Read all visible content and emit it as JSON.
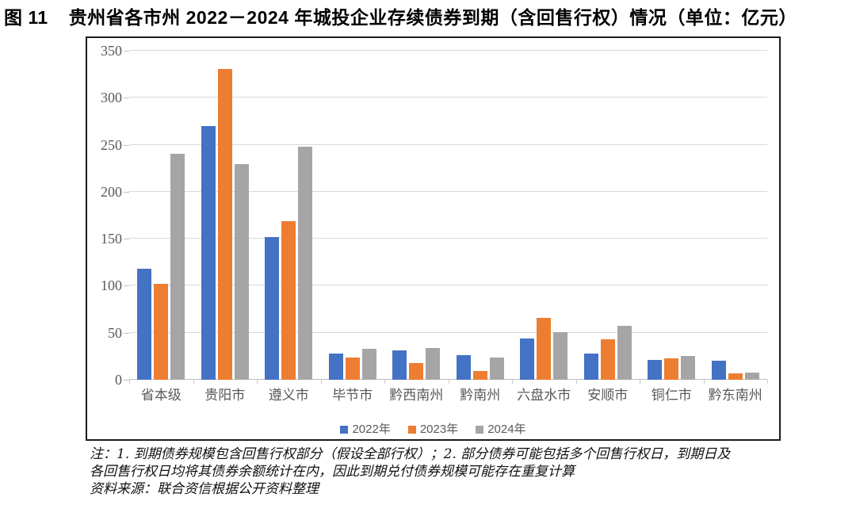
{
  "figure": {
    "title_prefix": "图 11",
    "title_text": "贵州省各市州 2022－2024 年城投企业存续债券到期（含回售行权）情况（单位：亿元）",
    "notes": [
      "注：1. 到期债券规模包含回售行权部分（假设全部行权）；2. 部分债券可能包括多个回售行权日，到期日及",
      "各回售行权日均将其债券余额统计在内，因此到期兑付债券规模可能存在重复计算",
      "资料来源：联合资信根据公开资料整理"
    ]
  },
  "chart_data": {
    "type": "bar",
    "title": "贵州省各市州2022－2024年城投企业存续债券到期（含回售行权）情况",
    "unit": "亿元",
    "categories": [
      "省本级",
      "贵阳市",
      "遵义市",
      "毕节市",
      "黔西南州",
      "黔南州",
      "六盘水市",
      "安顺市",
      "铜仁市",
      "黔东南州"
    ],
    "series": [
      {
        "name": "2022年",
        "color": "#4472C4",
        "values": [
          118,
          270,
          152,
          28,
          31,
          26,
          44,
          28,
          21,
          20
        ]
      },
      {
        "name": "2023年",
        "color": "#ED7D31",
        "values": [
          102,
          331,
          169,
          24,
          18,
          9,
          66,
          43,
          23,
          7
        ]
      },
      {
        "name": "2024年",
        "color": "#A5A5A5",
        "values": [
          240,
          229,
          248,
          33,
          34,
          24,
          51,
          57,
          25,
          8
        ]
      }
    ],
    "ylim": [
      0,
      350
    ],
    "yticks": [
      0,
      50,
      100,
      150,
      200,
      250,
      300,
      350
    ],
    "grid": true,
    "legend_position": "bottom"
  },
  "colors": {
    "grid": "#d9d9d9",
    "axis_text": "#595959",
    "box_border": "#1a1a1a"
  }
}
